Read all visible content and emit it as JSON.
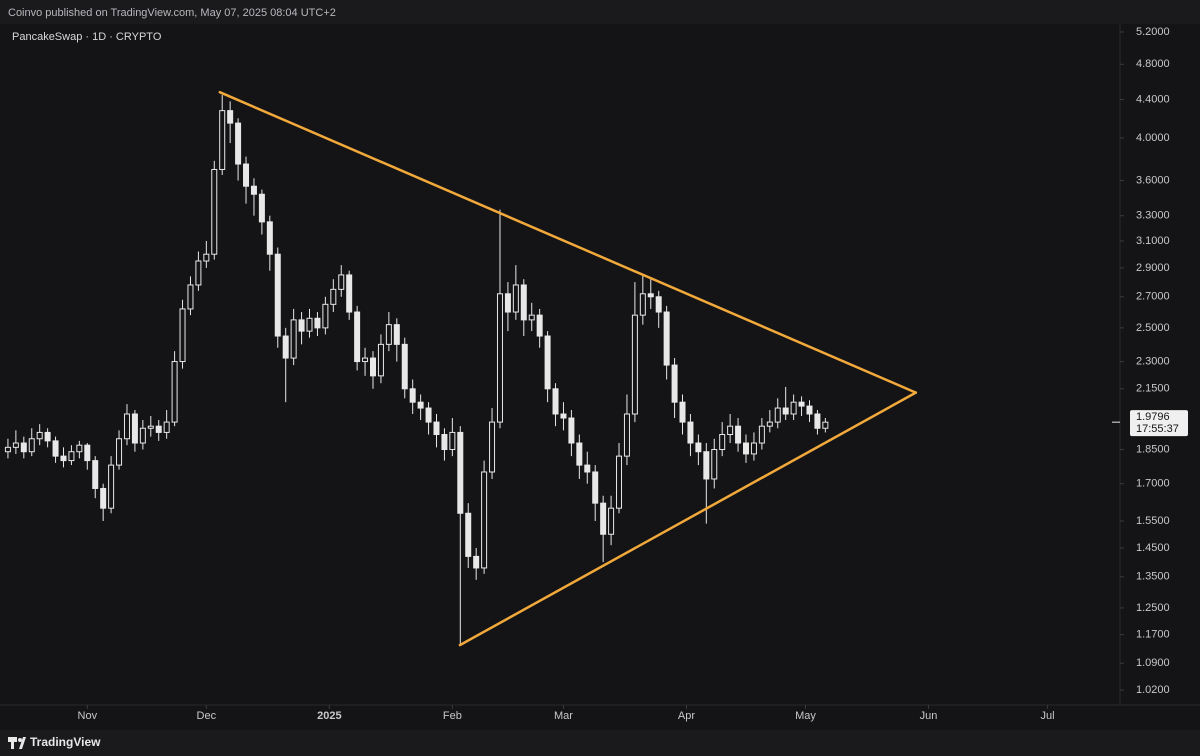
{
  "header": {
    "text": "Coinvo published on TradingView.com, May 07, 2025 08:04 UTC+2"
  },
  "footer": {
    "brand": "TradingView"
  },
  "chart_data": {
    "type": "candlestick",
    "title": "PancakeSwap · 1D · CRYPTO",
    "x": [
      2,
      4,
      6,
      8,
      10,
      12,
      14,
      16,
      18,
      20,
      22,
      24,
      26,
      28,
      30,
      32,
      34,
      36,
      38,
      40,
      42,
      44,
      46,
      48,
      50,
      52,
      54,
      56,
      58,
      60,
      62,
      64,
      66,
      68,
      70,
      72,
      74,
      76,
      78,
      80,
      82,
      84,
      86,
      88,
      90,
      92,
      94,
      96,
      98,
      100,
      102,
      104,
      106,
      108,
      110,
      112,
      114,
      116,
      118,
      120,
      122,
      124,
      126,
      128,
      130,
      132,
      134,
      136,
      138,
      140,
      142,
      144,
      146,
      148,
      150,
      152,
      154,
      156,
      158,
      160,
      162,
      164,
      166,
      168,
      170,
      172,
      174,
      176,
      178,
      180,
      182,
      184,
      186,
      188,
      190,
      192,
      194,
      196,
      198,
      200,
      202,
      204,
      206,
      208
    ],
    "open": [
      1.84,
      1.86,
      1.88,
      1.84,
      1.9,
      1.93,
      1.89,
      1.82,
      1.8,
      1.84,
      1.87,
      1.8,
      1.68,
      1.6,
      1.78,
      1.9,
      2.02,
      1.88,
      1.95,
      1.96,
      1.93,
      1.98,
      2.3,
      2.62,
      2.78,
      2.95,
      3.0,
      3.7,
      4.28,
      4.15,
      3.75,
      3.55,
      3.48,
      3.25,
      3.0,
      2.45,
      2.32,
      2.55,
      2.48,
      2.56,
      2.5,
      2.65,
      2.75,
      2.85,
      2.6,
      2.3,
      2.32,
      2.22,
      2.4,
      2.52,
      2.4,
      2.15,
      2.08,
      2.05,
      1.98,
      1.92,
      1.85,
      1.93,
      1.58,
      1.42,
      1.38,
      1.75,
      1.98,
      2.72,
      2.6,
      2.78,
      2.55,
      2.58,
      2.45,
      2.15,
      2.02,
      2.0,
      1.88,
      1.78,
      1.75,
      1.62,
      1.5,
      1.6,
      1.82,
      2.02,
      2.58,
      2.72,
      2.7,
      2.6,
      2.28,
      2.08,
      1.98,
      1.88,
      1.84,
      1.72,
      1.85,
      1.92,
      1.96,
      1.88,
      1.83,
      1.88,
      1.96,
      1.98,
      2.05,
      2.02,
      2.08,
      2.06,
      2.02,
      1.95
    ],
    "high": [
      1.9,
      1.94,
      1.91,
      1.95,
      1.97,
      1.95,
      1.91,
      1.86,
      1.87,
      1.89,
      1.88,
      1.82,
      1.7,
      1.82,
      1.94,
      2.07,
      2.04,
      1.99,
      2.01,
      1.99,
      2.04,
      2.36,
      2.68,
      2.84,
      3.02,
      3.1,
      3.78,
      4.45,
      4.38,
      4.2,
      3.82,
      3.62,
      3.52,
      3.3,
      3.05,
      2.5,
      2.62,
      2.6,
      2.62,
      2.6,
      2.7,
      2.82,
      2.92,
      2.88,
      2.64,
      2.38,
      2.36,
      2.46,
      2.6,
      2.56,
      2.44,
      2.2,
      2.12,
      2.08,
      2.02,
      1.95,
      2.0,
      1.96,
      1.62,
      1.45,
      1.8,
      2.05,
      3.35,
      2.8,
      2.92,
      2.82,
      2.66,
      2.62,
      2.48,
      2.18,
      2.08,
      2.04,
      1.92,
      1.84,
      1.78,
      1.65,
      1.65,
      1.88,
      2.12,
      2.8,
      2.85,
      2.82,
      2.74,
      2.64,
      2.32,
      2.12,
      2.02,
      1.92,
      1.88,
      1.9,
      1.98,
      2.02,
      2.0,
      1.92,
      1.93,
      2.0,
      2.04,
      2.1,
      2.16,
      2.12,
      2.11,
      2.09,
      2.04,
      2.0
    ],
    "low": [
      1.81,
      1.83,
      1.81,
      1.82,
      1.87,
      1.86,
      1.79,
      1.77,
      1.78,
      1.81,
      1.76,
      1.64,
      1.55,
      1.58,
      1.76,
      1.87,
      1.84,
      1.85,
      1.91,
      1.89,
      1.9,
      1.96,
      2.26,
      2.58,
      2.74,
      2.9,
      2.96,
      3.65,
      3.95,
      3.6,
      3.4,
      3.3,
      3.15,
      2.88,
      2.38,
      2.08,
      2.28,
      2.4,
      2.44,
      2.45,
      2.46,
      2.6,
      2.7,
      2.55,
      2.25,
      2.22,
      2.15,
      2.18,
      2.36,
      2.3,
      2.1,
      2.02,
      1.99,
      1.92,
      1.86,
      1.8,
      1.82,
      1.14,
      1.38,
      1.34,
      1.36,
      1.72,
      1.95,
      2.48,
      2.55,
      2.45,
      2.48,
      2.38,
      2.08,
      1.96,
      1.94,
      1.82,
      1.72,
      1.7,
      1.55,
      1.4,
      1.46,
      1.58,
      1.78,
      1.98,
      2.52,
      2.62,
      2.5,
      2.2,
      2.0,
      1.92,
      1.82,
      1.78,
      1.54,
      1.68,
      1.82,
      1.88,
      1.84,
      1.79,
      1.8,
      1.85,
      1.93,
      1.95,
      1.99,
      1.99,
      2.01,
      1.98,
      1.92,
      1.93
    ],
    "close": [
      1.86,
      1.88,
      1.84,
      1.9,
      1.93,
      1.89,
      1.82,
      1.8,
      1.84,
      1.87,
      1.8,
      1.68,
      1.6,
      1.78,
      1.9,
      2.02,
      1.88,
      1.95,
      1.96,
      1.93,
      1.98,
      2.3,
      2.62,
      2.78,
      2.95,
      3.0,
      3.7,
      4.28,
      4.15,
      3.75,
      3.55,
      3.48,
      3.25,
      3.0,
      2.45,
      2.32,
      2.55,
      2.48,
      2.56,
      2.5,
      2.65,
      2.75,
      2.85,
      2.6,
      2.3,
      2.32,
      2.22,
      2.4,
      2.52,
      2.4,
      2.15,
      2.08,
      2.05,
      1.98,
      1.92,
      1.85,
      1.93,
      1.58,
      1.42,
      1.38,
      1.75,
      1.98,
      2.72,
      2.6,
      2.78,
      2.55,
      2.58,
      2.45,
      2.15,
      2.02,
      2.0,
      1.88,
      1.78,
      1.75,
      1.62,
      1.5,
      1.6,
      1.82,
      2.02,
      2.58,
      2.72,
      2.7,
      2.6,
      2.28,
      2.08,
      1.98,
      1.88,
      1.84,
      1.72,
      1.85,
      1.92,
      1.96,
      1.88,
      1.83,
      1.88,
      1.96,
      1.98,
      2.05,
      2.02,
      2.08,
      2.06,
      2.02,
      1.95,
      1.9796
    ],
    "countdown": "17:55:37",
    "up_color": "#e8e8e8",
    "down_color": "#e8e8e8",
    "log_scale": true,
    "grid": false,
    "xlim": [
      0,
      282
    ],
    "xticks": [
      {
        "value": 22,
        "label": "Nov"
      },
      {
        "value": 52,
        "label": "Dec"
      },
      {
        "value": 83,
        "label": "2025"
      },
      {
        "value": 114,
        "label": "Feb"
      },
      {
        "value": 142,
        "label": "Mar"
      },
      {
        "value": 173,
        "label": "Apr"
      },
      {
        "value": 203,
        "label": "May"
      },
      {
        "value": 234,
        "label": "Jun"
      },
      {
        "value": 264,
        "label": "Jul"
      }
    ],
    "ylim": [
      0.983,
      5.33
    ],
    "yticks": [
      {
        "value": 5.2,
        "label": "5.2000"
      },
      {
        "value": 4.8,
        "label": "4.8000"
      },
      {
        "value": 4.4,
        "label": "4.4000"
      },
      {
        "value": 4.0,
        "label": "4.0000"
      },
      {
        "value": 3.6,
        "label": "3.6000"
      },
      {
        "value": 3.3,
        "label": "3.3000"
      },
      {
        "value": 3.1,
        "label": "3.1000"
      },
      {
        "value": 2.9,
        "label": "2.9000"
      },
      {
        "value": 2.7,
        "label": "2.7000"
      },
      {
        "value": 2.5,
        "label": "2.5000"
      },
      {
        "value": 2.3,
        "label": "2.3000"
      },
      {
        "value": 2.15,
        "label": "2.1500"
      },
      {
        "value": 1.85,
        "label": "1.8500"
      },
      {
        "value": 1.7,
        "label": "1.7000"
      },
      {
        "value": 1.55,
        "label": "1.5500"
      },
      {
        "value": 1.45,
        "label": "1.4500"
      },
      {
        "value": 1.35,
        "label": "1.3500"
      },
      {
        "value": 1.25,
        "label": "1.2500"
      },
      {
        "value": 1.17,
        "label": "1.1700"
      },
      {
        "value": 1.09,
        "label": "1.0900"
      },
      {
        "value": 1.02,
        "label": "1.0200"
      }
    ],
    "trendlines": [
      {
        "color": "#f2a93b",
        "x": [
          55.4,
          230.8
        ],
        "y": [
          4.48,
          2.13
        ]
      },
      {
        "color": "#f2a93b",
        "x": [
          115.9,
          230.8
        ],
        "y": [
          1.14,
          2.13
        ]
      }
    ]
  }
}
